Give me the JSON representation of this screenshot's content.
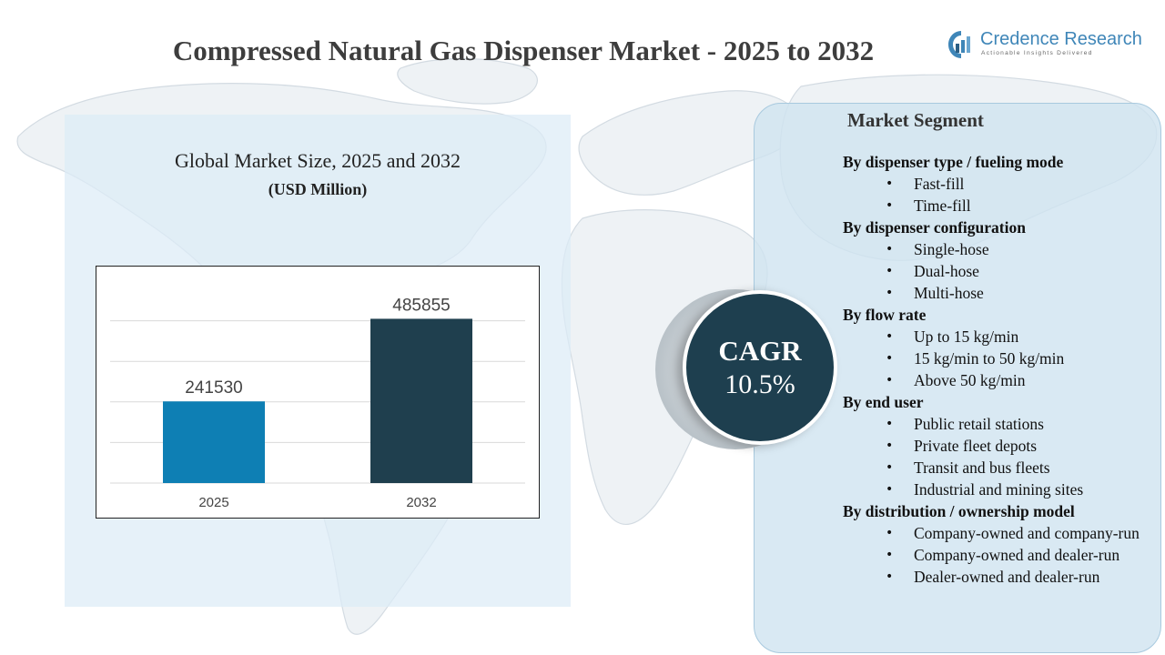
{
  "header": {
    "title": "Compressed Natural Gas Dispenser Market - 2025 to 2032"
  },
  "logo": {
    "name": "Credence Research",
    "tagline": "Actionable Insights Delivered",
    "icon": "credence-logo-icon"
  },
  "chart_data": {
    "type": "bar",
    "title": "Global Market Size, 2025 and 2032",
    "unit": "(USD Million)",
    "categories": [
      "2025",
      "2032"
    ],
    "values": [
      241530,
      485855
    ],
    "data_labels": [
      "241530",
      "485855"
    ],
    "colors": [
      "#0e7fb4",
      "#1f3f4e"
    ],
    "ylim": [
      0,
      600000
    ],
    "grid": true,
    "legend": "none"
  },
  "cagr": {
    "label": "CAGR",
    "value": "10.5%"
  },
  "segments": {
    "title": "Market Segment",
    "groups": [
      {
        "heading": "By dispenser type / fueling mode",
        "items": [
          "Fast-fill",
          "Time-fill"
        ]
      },
      {
        "heading": "By dispenser configuration",
        "items": [
          "Single-hose",
          "Dual-hose",
          "Multi-hose"
        ]
      },
      {
        "heading": "By flow rate",
        "items": [
          "Up to 15 kg/min",
          "15 kg/min to 50 kg/min",
          "Above 50 kg/min"
        ]
      },
      {
        "heading": "By end user",
        "items": [
          "Public retail stations",
          "Private fleet depots",
          "Transit and bus fleets",
          "Industrial and mining sites"
        ]
      },
      {
        "heading": "By distribution / ownership model",
        "items": [
          "Company-owned and company-run",
          "Company-owned and dealer-run",
          "Dealer-owned and dealer-run"
        ]
      }
    ]
  },
  "colors": {
    "panel_bg": "#dcebf6",
    "segment_bg": "#d0e4f0",
    "cagr_circle": "#1e3f4f",
    "logo_blue": "#3f86b8"
  }
}
